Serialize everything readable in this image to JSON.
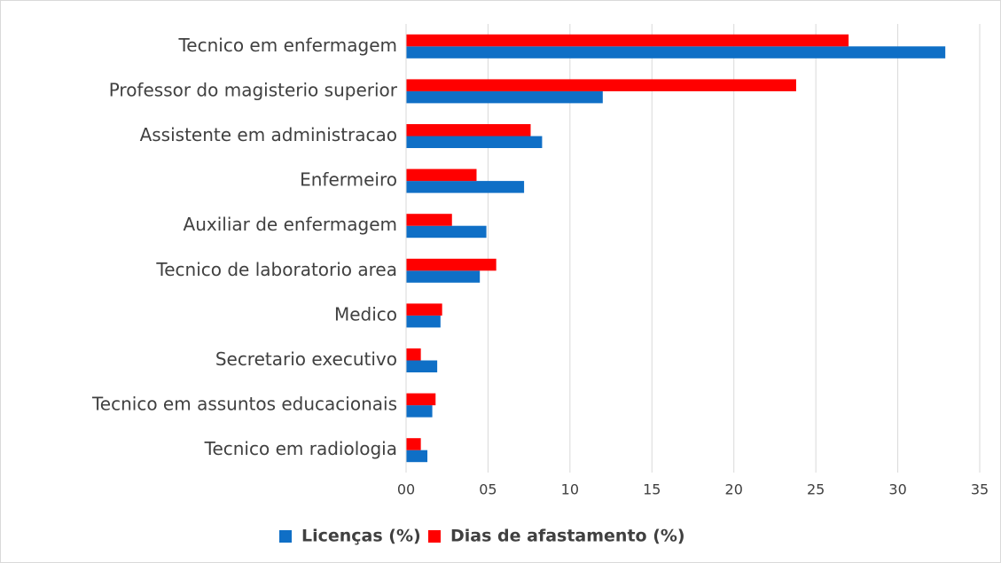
{
  "chart_data": {
    "type": "hbar",
    "categories": [
      "Tecnico em enfermagem",
      "Professor do magisterio superior",
      "Assistente em administracao",
      "Enfermeiro",
      "Auxiliar de enfermagem",
      "Tecnico de laboratorio area",
      "Medico",
      "Secretario executivo",
      "Tecnico em assuntos educacionais",
      "Tecnico em radiologia"
    ],
    "series": [
      {
        "name": "Licenças (%)",
        "color": "#0f6fc6",
        "values": [
          32.9,
          12.0,
          8.3,
          7.2,
          4.9,
          4.5,
          2.1,
          1.9,
          1.6,
          1.3
        ]
      },
      {
        "name": "Dias de afastamento (%)",
        "color": "#ff0000",
        "values": [
          27.0,
          23.8,
          7.6,
          4.3,
          2.8,
          5.5,
          2.2,
          0.9,
          1.8,
          0.9
        ]
      }
    ],
    "xlim": [
      0,
      35
    ],
    "xticks": [
      {
        "value": 0,
        "label": "00"
      },
      {
        "value": 5,
        "label": "05"
      },
      10,
      15,
      20,
      25,
      30,
      35
    ],
    "grid": true,
    "legend": "bottom"
  }
}
